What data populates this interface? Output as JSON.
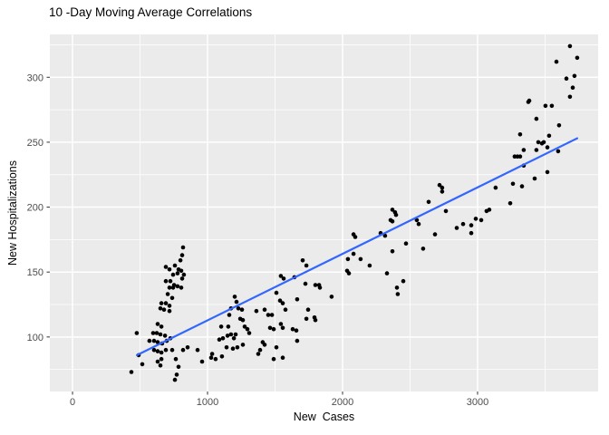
{
  "chart_data": {
    "type": "scatter",
    "title": "10 -Day Moving Average Correlations",
    "xlabel": "New  Cases",
    "ylabel": "New Hospitalizations",
    "legend": "none",
    "grid": true,
    "x_axis": {
      "ticks": [
        0,
        1000,
        2000,
        3000
      ],
      "minor_ticks": [
        500,
        1500,
        2500,
        3500
      ],
      "range": [
        -168,
        3893
      ]
    },
    "y_axis": {
      "ticks": [
        100,
        150,
        200,
        250,
        300
      ],
      "minor_ticks": [
        75,
        125,
        175,
        225,
        275,
        325
      ],
      "range": [
        58,
        333
      ]
    },
    "colors": {
      "panel_bg": "#EBEBEB",
      "grid": "#FFFFFF",
      "points": "#000000",
      "trend_line": "#3366FF",
      "tick_label": "#4D4D4D",
      "tick_mark": "#333333",
      "axis_label": "#000000",
      "background": "#FFFFFF"
    },
    "trend_line": {
      "type": "linear",
      "from": [
        477,
        86
      ],
      "to": [
        3738,
        253
      ]
    },
    "points": [
      [
        819,
        169
      ],
      [
        812,
        163
      ],
      [
        799,
        159
      ],
      [
        691,
        154
      ],
      [
        718,
        152
      ],
      [
        758,
        155
      ],
      [
        785,
        152
      ],
      [
        805,
        151
      ],
      [
        778,
        149
      ],
      [
        745,
        148
      ],
      [
        691,
        143
      ],
      [
        725,
        143
      ],
      [
        752,
        140
      ],
      [
        778,
        139
      ],
      [
        718,
        138
      ],
      [
        745,
        138
      ],
      [
        705,
        133
      ],
      [
        738,
        130
      ],
      [
        691,
        126
      ],
      [
        658,
        126
      ],
      [
        718,
        124
      ],
      [
        651,
        122
      ],
      [
        678,
        121
      ],
      [
        718,
        120
      ],
      [
        631,
        110
      ],
      [
        658,
        108
      ],
      [
        476,
        103
      ],
      [
        597,
        103
      ],
      [
        624,
        103
      ],
      [
        651,
        102
      ],
      [
        685,
        101
      ],
      [
        570,
        97
      ],
      [
        604,
        97
      ],
      [
        631,
        96
      ],
      [
        664,
        95
      ],
      [
        698,
        97
      ],
      [
        725,
        99
      ],
      [
        604,
        90
      ],
      [
        631,
        89
      ],
      [
        658,
        88
      ],
      [
        691,
        90
      ],
      [
        738,
        90
      ],
      [
        819,
        90
      ],
      [
        852,
        92
      ],
      [
        490,
        86
      ],
      [
        517,
        79
      ],
      [
        631,
        81
      ],
      [
        658,
        83
      ],
      [
        651,
        78
      ],
      [
        765,
        83
      ],
      [
        785,
        77
      ],
      [
        926,
        90
      ],
      [
        960,
        81
      ],
      [
        1027,
        84
      ],
      [
        1060,
        83
      ],
      [
        772,
        71
      ],
      [
        758,
        67
      ],
      [
        436,
        73
      ],
      [
        825,
        148
      ],
      [
        812,
        145
      ],
      [
        805,
        138
      ],
      [
        1705,
        159
      ],
      [
        1732,
        155
      ],
      [
        1543,
        147
      ],
      [
        1564,
        145
      ],
      [
        1644,
        146
      ],
      [
        1725,
        141
      ],
      [
        1799,
        140
      ],
      [
        1826,
        140
      ],
      [
        1832,
        138
      ],
      [
        1201,
        131
      ],
      [
        1215,
        127
      ],
      [
        1510,
        134
      ],
      [
        1537,
        128
      ],
      [
        1557,
        126
      ],
      [
        1919,
        131
      ],
      [
        1664,
        129
      ],
      [
        1174,
        122
      ],
      [
        1228,
        122
      ],
      [
        1255,
        121
      ],
      [
        1362,
        120
      ],
      [
        1423,
        121
      ],
      [
        1450,
        117
      ],
      [
        1477,
        117
      ],
      [
        1577,
        121
      ],
      [
        1745,
        121
      ],
      [
        1732,
        114
      ],
      [
        1792,
        115
      ],
      [
        1799,
        113
      ],
      [
        1161,
        117
      ],
      [
        1242,
        114
      ],
      [
        1262,
        113
      ],
      [
        1101,
        108
      ],
      [
        1154,
        108
      ],
      [
        1275,
        108
      ],
      [
        1295,
        106
      ],
      [
        1309,
        103
      ],
      [
        1463,
        107
      ],
      [
        1490,
        106
      ],
      [
        1543,
        110
      ],
      [
        1557,
        107
      ],
      [
        1631,
        106
      ],
      [
        1658,
        105
      ],
      [
        1087,
        98
      ],
      [
        1114,
        99
      ],
      [
        1148,
        101
      ],
      [
        1174,
        102
      ],
      [
        1195,
        99
      ],
      [
        1208,
        102
      ],
      [
        1664,
        97
      ],
      [
        1141,
        92
      ],
      [
        1188,
        91
      ],
      [
        1221,
        92
      ],
      [
        1262,
        94
      ],
      [
        1389,
        90
      ],
      [
        1409,
        96
      ],
      [
        1423,
        94
      ],
      [
        1510,
        92
      ],
      [
        1107,
        85
      ],
      [
        1376,
        87
      ],
      [
        1490,
        83
      ],
      [
        1557,
        84
      ],
      [
        1034,
        87
      ],
      [
        2718,
        217
      ],
      [
        2738,
        215
      ],
      [
        2738,
        212
      ],
      [
        2638,
        204
      ],
      [
        2765,
        197
      ],
      [
        2369,
        198
      ],
      [
        2389,
        196
      ],
      [
        2396,
        194
      ],
      [
        2356,
        190
      ],
      [
        2369,
        189
      ],
      [
        2550,
        190
      ],
      [
        2564,
        187
      ],
      [
        2846,
        184
      ],
      [
        2893,
        187
      ],
      [
        2081,
        179
      ],
      [
        2094,
        177
      ],
      [
        2282,
        180
      ],
      [
        2315,
        178
      ],
      [
        2685,
        179
      ],
      [
        2470,
        172
      ],
      [
        2597,
        168
      ],
      [
        2369,
        166
      ],
      [
        2081,
        164
      ],
      [
        2040,
        160
      ],
      [
        2134,
        160
      ],
      [
        2201,
        155
      ],
      [
        2034,
        151
      ],
      [
        2047,
        149
      ],
      [
        2329,
        149
      ],
      [
        2450,
        143
      ],
      [
        2403,
        138
      ],
      [
        2409,
        133
      ],
      [
        3067,
        197
      ],
      [
        3684,
        324
      ],
      [
        3738,
        315
      ],
      [
        3584,
        312
      ],
      [
        3718,
        301
      ],
      [
        3658,
        299
      ],
      [
        3705,
        292
      ],
      [
        3684,
        285
      ],
      [
        3376,
        281
      ],
      [
        3383,
        282
      ],
      [
        3503,
        278
      ],
      [
        3550,
        278
      ],
      [
        3436,
        268
      ],
      [
        3604,
        263
      ],
      [
        3315,
        256
      ],
      [
        3530,
        255
      ],
      [
        3450,
        250
      ],
      [
        3477,
        249
      ],
      [
        3490,
        250
      ],
      [
        3436,
        244
      ],
      [
        3342,
        244
      ],
      [
        3275,
        239
      ],
      [
        3295,
        239
      ],
      [
        3315,
        239
      ],
      [
        3597,
        243
      ],
      [
        3517,
        246
      ],
      [
        3342,
        232
      ],
      [
        3517,
        227
      ],
      [
        3423,
        222
      ],
      [
        3134,
        215
      ],
      [
        3262,
        218
      ],
      [
        3329,
        216
      ],
      [
        3242,
        203
      ],
      [
        3087,
        198
      ],
      [
        2987,
        191
      ],
      [
        3027,
        190
      ],
      [
        2953,
        186
      ],
      [
        2953,
        180
      ]
    ]
  }
}
